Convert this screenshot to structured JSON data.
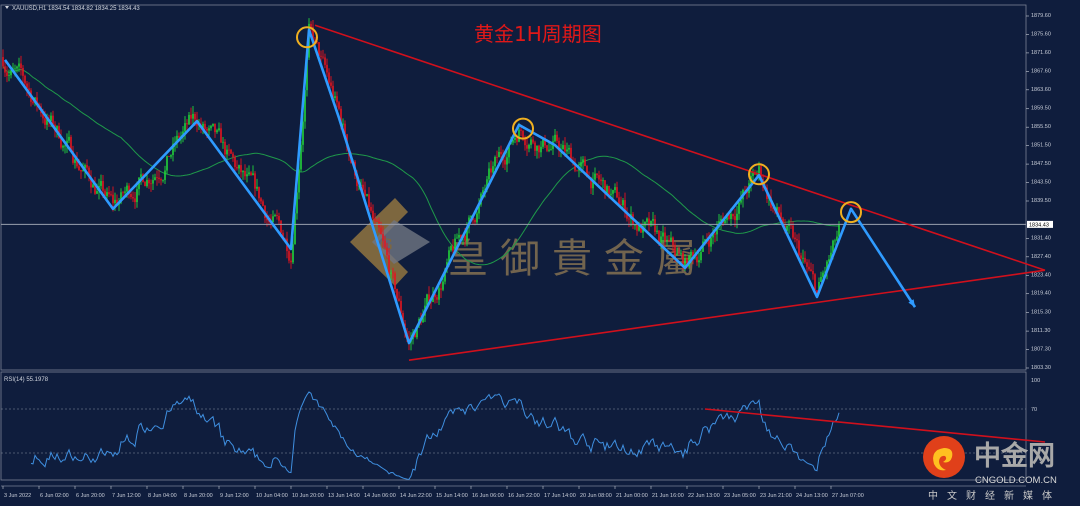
{
  "header": {
    "symbol": "XAUUSD,H1",
    "ohlc": "1834.54 1834.82 1834.25 1834.43",
    "text": "XAUUSD,H1  1834.54 1834.82 1834.25 1834.43"
  },
  "title": "黄金1H周期图",
  "watermark": {
    "text": "皇御貴金屬",
    "logo_letter": "G"
  },
  "brand": {
    "name": "中金网",
    "domain": "CNGOLD.COM.CN",
    "slogan": "中文财经新媒体"
  },
  "colors": {
    "background": "#0f1d3d",
    "bull": "#22d43a",
    "bear": "#e8141e",
    "zigzag": "#2f9bff",
    "trendline": "#d0101c",
    "circle": "#f0b020",
    "ma": "#1f9a4a",
    "rsi": "#3f8fe0"
  },
  "chart_data": {
    "type": "candlestick",
    "symbol": "XAUUSD",
    "timeframe": "H1",
    "ylim": [
      1803.3,
      1879.6
    ],
    "price_ticks": [
      "1879.60",
      "1875.60",
      "1871.60",
      "1867.60",
      "1863.60",
      "1859.50",
      "1855.50",
      "1851.50",
      "1847.50",
      "1843.50",
      "1839.50",
      "1831.40",
      "1827.40",
      "1823.40",
      "1819.40",
      "1815.30",
      "1811.30",
      "1807.30",
      "1803.30"
    ],
    "current_price": "1834.43",
    "time_ticks": [
      "3 Jun 2022",
      "6 Jun 02:00",
      "6 Jun 20:00",
      "7 Jun 12:00",
      "8 Jun 04:00",
      "8 Jun 20:00",
      "9 Jun 12:00",
      "10 Jun 04:00",
      "10 Jun 20:00",
      "13 Jun 14:00",
      "14 Jun 06:00",
      "14 Jun 22:00",
      "15 Jun 14:00",
      "16 Jun 06:00",
      "16 Jun 22:00",
      "17 Jun 14:00",
      "20 Jun 08:00",
      "21 Jun 00:00",
      "21 Jun 16:00",
      "22 Jun 13:00",
      "23 Jun 05:00",
      "23 Jun 21:00",
      "24 Jun 13:00",
      "27 Jun 07:00"
    ],
    "bars_per_tick": 18,
    "zigzag": [
      {
        "bar": 1,
        "price": 1870.1
      },
      {
        "bar": 55,
        "price": 1837.8
      },
      {
        "bar": 97,
        "price": 1856.8
      },
      {
        "bar": 144,
        "price": 1829.1
      },
      {
        "bar": 153,
        "price": 1876.6
      },
      {
        "bar": 168,
        "price": 1857.5
      },
      {
        "bar": 203,
        "price": 1808.7
      },
      {
        "bar": 258,
        "price": 1856.0
      },
      {
        "bar": 276,
        "price": 1851.6
      },
      {
        "bar": 341,
        "price": 1825.0
      },
      {
        "bar": 378,
        "price": 1845.1
      },
      {
        "bar": 407,
        "price": 1818.7
      },
      {
        "bar": 424,
        "price": 1837.8
      },
      {
        "bar": 456,
        "price": 1816.5
      }
    ],
    "last_bar": 418,
    "highlighted_pivots": [
      {
        "bar": 152,
        "price": 1875.0
      },
      {
        "bar": 260,
        "price": 1855.2
      },
      {
        "bar": 378,
        "price": 1845.3
      },
      {
        "bar": 424,
        "price": 1837.1
      }
    ],
    "trendlines": [
      {
        "from": {
          "bar": 156,
          "price": 1877.6
        },
        "to": {
          "bar": 521,
          "price": 1824.5
        }
      },
      {
        "from": {
          "bar": 203,
          "price": 1805.0
        },
        "to": {
          "bar": 521,
          "price": 1824.5
        }
      }
    ],
    "indicator": {
      "name": "RSI(14)",
      "value": "55.1978",
      "label": "RSI(14) 55.1978",
      "ylim": [
        0,
        100
      ],
      "levels": [
        70,
        30
      ],
      "axis_labels": [
        "100",
        "70"
      ],
      "trendline": {
        "from": {
          "bar": 351,
          "value": 70
        },
        "to": {
          "bar": 521,
          "value": 40
        }
      }
    }
  }
}
